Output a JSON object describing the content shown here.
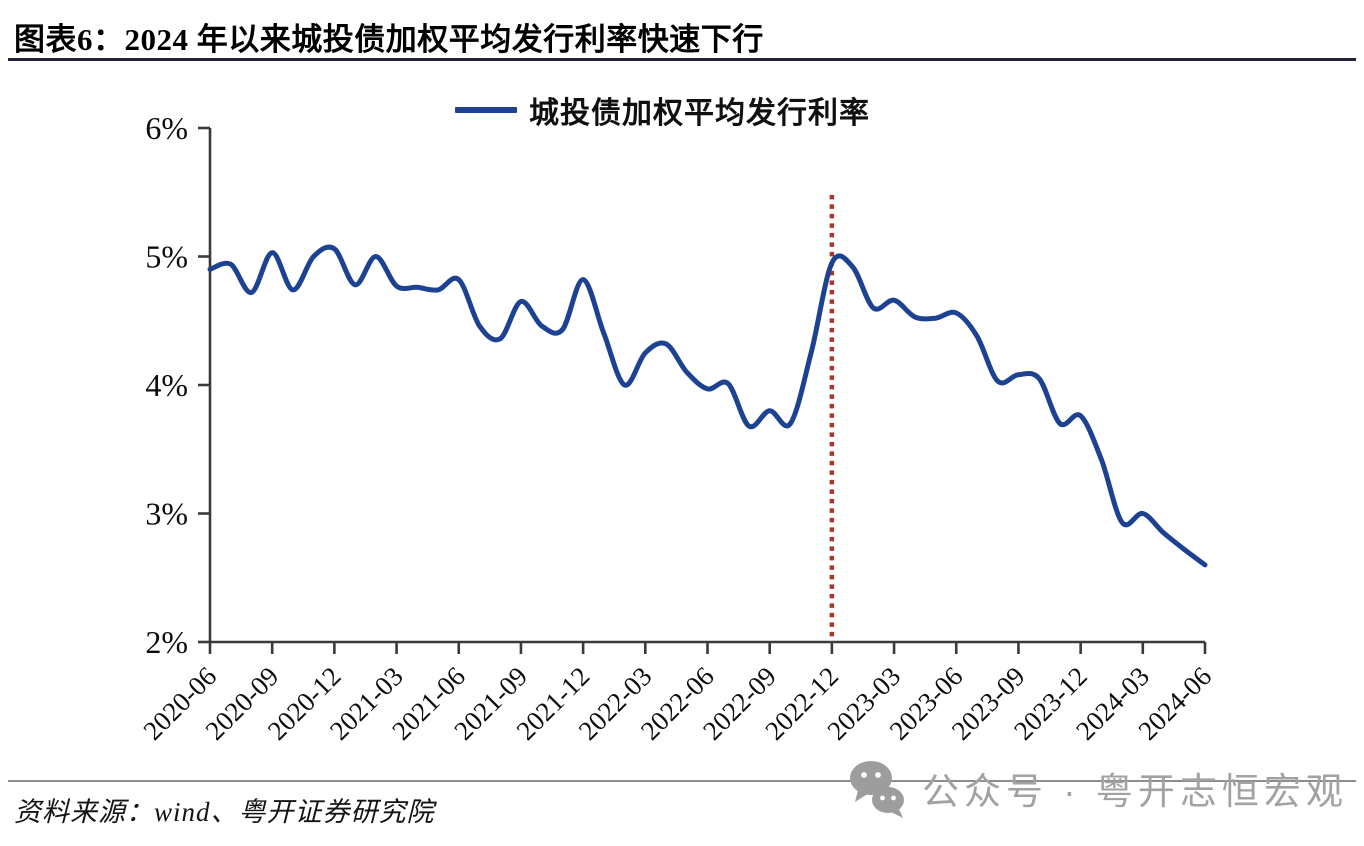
{
  "header": {
    "figure_label": "图表6：",
    "title": "2024 年以来城投债加权平均发行利率快速下行"
  },
  "legend": {
    "label": "城投债加权平均发行利率"
  },
  "chart_data": {
    "type": "line",
    "title": "图表6：2024 年以来城投债加权平均发行利率快速下行",
    "xlabel": "",
    "ylabel": "",
    "ylim": [
      2,
      6
    ],
    "y_ticks": [
      {
        "value": 6,
        "label": "6%"
      },
      {
        "value": 5,
        "label": "5%"
      },
      {
        "value": 4,
        "label": "4%"
      },
      {
        "value": 3,
        "label": "3%"
      },
      {
        "value": 2,
        "label": "2%"
      }
    ],
    "x_tick_labels": [
      "2020-06",
      "2020-09",
      "2020-12",
      "2021-03",
      "2021-06",
      "2021-09",
      "2021-12",
      "2022-03",
      "2022-06",
      "2022-09",
      "2022-12",
      "2023-03",
      "2023-06",
      "2023-09",
      "2023-12",
      "2024-03",
      "2024-06"
    ],
    "legend_position": "top-center",
    "grid": false,
    "axis_color": "#3a3a3a",
    "series": [
      {
        "name": "城投债加权平均发行利率",
        "color": "#1e4292",
        "unit": "%",
        "x": [
          "2020-06",
          "2020-07",
          "2020-08",
          "2020-09",
          "2020-10",
          "2020-11",
          "2020-12",
          "2021-01",
          "2021-02",
          "2021-03",
          "2021-04",
          "2021-05",
          "2021-06",
          "2021-07",
          "2021-08",
          "2021-09",
          "2021-10",
          "2021-11",
          "2021-12",
          "2022-01",
          "2022-02",
          "2022-03",
          "2022-04",
          "2022-05",
          "2022-06",
          "2022-07",
          "2022-08",
          "2022-09",
          "2022-10",
          "2022-11",
          "2022-12",
          "2023-01",
          "2023-02",
          "2023-03",
          "2023-04",
          "2023-05",
          "2023-06",
          "2023-07",
          "2023-08",
          "2023-09",
          "2023-10",
          "2023-11",
          "2023-12",
          "2024-01",
          "2024-02",
          "2024-03",
          "2024-04",
          "2024-05",
          "2024-06"
        ],
        "values": [
          4.9,
          4.94,
          4.72,
          5.03,
          4.74,
          5.0,
          5.06,
          4.78,
          5.0,
          4.77,
          4.76,
          4.74,
          4.82,
          4.46,
          4.36,
          4.65,
          4.46,
          4.43,
          4.82,
          4.4,
          4.0,
          4.25,
          4.32,
          4.1,
          3.97,
          4.01,
          3.68,
          3.8,
          3.7,
          4.25,
          4.95,
          4.92,
          4.6,
          4.66,
          4.53,
          4.52,
          4.56,
          4.38,
          4.03,
          4.08,
          4.05,
          3.7,
          3.76,
          3.42,
          2.93,
          3.0,
          2.85,
          2.72,
          2.6
        ]
      }
    ],
    "annotation": {
      "type": "vline",
      "x": "2022-12",
      "y_top": 5.48,
      "color": "#ab3530",
      "style": "dotted"
    }
  },
  "footer": {
    "source": "资料来源：wind、粤开证券研究院"
  },
  "watermark": {
    "icon": "wechat-icon",
    "text": "公众号 · 粤开志恒宏观"
  }
}
